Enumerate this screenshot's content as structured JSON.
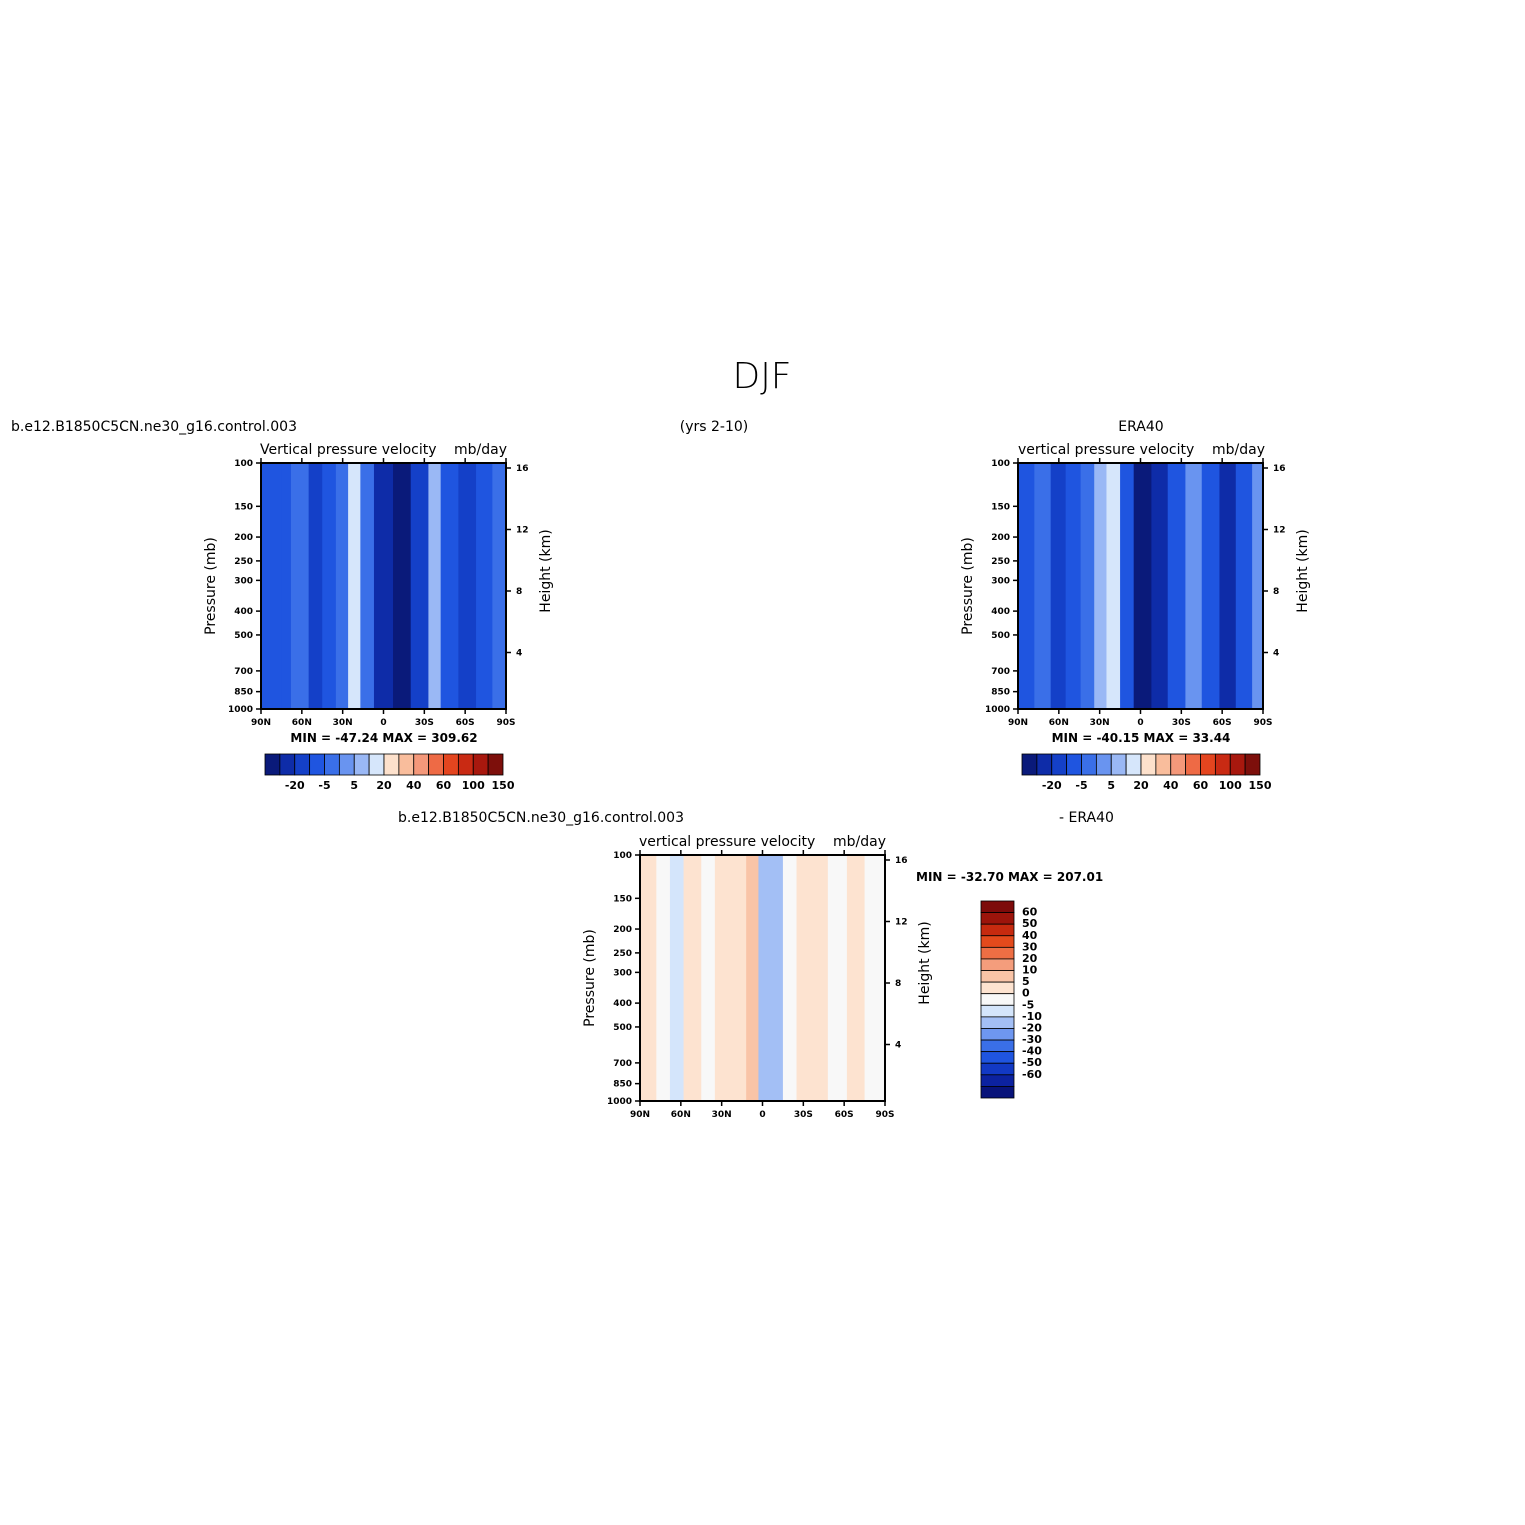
{
  "figure": {
    "main_title": "DJF",
    "center_subtitle": "(yrs 2-10)"
  },
  "colors": {
    "model_scale": [
      "#0a1a7a",
      "#0e2ca8",
      "#1440c8",
      "#1f55e0",
      "#3a6fe8",
      "#6994f0",
      "#9ab8f5",
      "#d6e6fb",
      "#fde1cc",
      "#f9bd9c",
      "#f4987a",
      "#ee6a45",
      "#e4451f",
      "#c92a13",
      "#a8180e",
      "#7d0f0b"
    ],
    "diff_scale": [
      "#08137a",
      "#0c22a0",
      "#1239c4",
      "#1f55e0",
      "#3a6fe8",
      "#6e97f0",
      "#a3bff5",
      "#d4e5fb",
      "#f8f8f8",
      "#fde3d0",
      "#f9c4a7",
      "#f49d7c",
      "#ee6e44",
      "#e34a1c",
      "#c62a0f",
      "#9c140b",
      "#7d0b0a"
    ]
  },
  "chart_data": [
    {
      "type": "heatmap",
      "panel": "model",
      "title_left": "b.e12.B1850C5CN.ne30_g16.control.003",
      "title_center": "Vertical pressure velocity",
      "title_right": "mb/day",
      "xlabel": "",
      "ylabel": "Pressure (mb)",
      "ylabel_right": "Height (km)",
      "x_ticks": [
        "90N",
        "60N",
        "30N",
        "0",
        "30S",
        "60S",
        "90S"
      ],
      "y_ticks": [
        100,
        150,
        200,
        250,
        300,
        400,
        500,
        700,
        850,
        1000
      ],
      "y_right_ticks": [
        16,
        12,
        8,
        4
      ],
      "ylim": [
        1000,
        100
      ],
      "stats": "MIN = -47.24   MAX = 309.62",
      "colorbar_labels": [
        "-20",
        "-5",
        "5",
        "20",
        "40",
        "60",
        "100",
        "150"
      ],
      "colorbar_orientation": "horizontal",
      "colorbar_colors": [
        "#0a1a7a",
        "#0e2ca8",
        "#1440c8",
        "#1f55e0",
        "#3a6fe8",
        "#6994f0",
        "#9ab8f5",
        "#d6e6fb",
        "#fde1cc",
        "#f9bd9c",
        "#f4987a",
        "#ee6a45",
        "#e4451f",
        "#c92a13",
        "#a8180e",
        "#7d0f0b"
      ],
      "field_bands": [
        {
          "lat": 90,
          "level": 3
        },
        {
          "lat": 75,
          "level": 3
        },
        {
          "lat": 68,
          "level": 4
        },
        {
          "lat": 55,
          "level": 2
        },
        {
          "lat": 45,
          "level": 3
        },
        {
          "lat": 35,
          "level": 4
        },
        {
          "lat": 26,
          "level": 7
        },
        {
          "lat": 17,
          "level": 4
        },
        {
          "lat": 7,
          "level": 1
        },
        {
          "lat": -7,
          "level": 0
        },
        {
          "lat": -20,
          "level": 2
        },
        {
          "lat": -33,
          "level": 6
        },
        {
          "lat": -42,
          "level": 3
        },
        {
          "lat": -55,
          "level": 2
        },
        {
          "lat": -68,
          "level": 3
        },
        {
          "lat": -80,
          "level": 4
        },
        {
          "lat": -90,
          "level": 4
        }
      ]
    },
    {
      "type": "heatmap",
      "panel": "obs",
      "title_left": "",
      "title_top": "ERA40",
      "title_center": "vertical pressure velocity",
      "title_right": "mb/day",
      "xlabel": "",
      "ylabel": "Pressure (mb)",
      "ylabel_right": "Height (km)",
      "x_ticks": [
        "90N",
        "60N",
        "30N",
        "0",
        "30S",
        "60S",
        "90S"
      ],
      "y_ticks": [
        100,
        150,
        200,
        250,
        300,
        400,
        500,
        700,
        850,
        1000
      ],
      "y_right_ticks": [
        16,
        12,
        8,
        4
      ],
      "ylim": [
        1000,
        100
      ],
      "stats": "MIN = -40.15   MAX =  33.44",
      "colorbar_labels": [
        "-20",
        "-5",
        "5",
        "20",
        "40",
        "60",
        "100",
        "150"
      ],
      "colorbar_orientation": "horizontal",
      "colorbar_colors": [
        "#0a1a7a",
        "#0e2ca8",
        "#1440c8",
        "#1f55e0",
        "#3a6fe8",
        "#6994f0",
        "#9ab8f5",
        "#d6e6fb",
        "#fde1cc",
        "#f9bd9c",
        "#f4987a",
        "#ee6a45",
        "#e4451f",
        "#c92a13",
        "#a8180e",
        "#7d0f0b"
      ],
      "field_bands": [
        {
          "lat": 90,
          "level": 3
        },
        {
          "lat": 78,
          "level": 4
        },
        {
          "lat": 66,
          "level": 2
        },
        {
          "lat": 55,
          "level": 3
        },
        {
          "lat": 44,
          "level": 4
        },
        {
          "lat": 34,
          "level": 6
        },
        {
          "lat": 25,
          "level": 7
        },
        {
          "lat": 15,
          "level": 3
        },
        {
          "lat": 5,
          "level": 0
        },
        {
          "lat": -8,
          "level": 1
        },
        {
          "lat": -20,
          "level": 3
        },
        {
          "lat": -33,
          "level": 5
        },
        {
          "lat": -45,
          "level": 3
        },
        {
          "lat": -58,
          "level": 1
        },
        {
          "lat": -70,
          "level": 3
        },
        {
          "lat": -82,
          "level": 5
        },
        {
          "lat": -90,
          "level": 4
        }
      ]
    },
    {
      "type": "heatmap",
      "panel": "difference",
      "title_left": "b.e12.B1850C5CN.ne30_g16.control.003",
      "title_right_line": "- ERA40",
      "title_center": "vertical pressure velocity",
      "title_right": "mb/day",
      "xlabel": "",
      "ylabel": "Pressure (mb)",
      "ylabel_right": "Height (km)",
      "x_ticks": [
        "90N",
        "60N",
        "30N",
        "0",
        "30S",
        "60S",
        "90S"
      ],
      "y_ticks": [
        100,
        150,
        200,
        250,
        300,
        400,
        500,
        700,
        850,
        1000
      ],
      "y_right_ticks": [
        16,
        12,
        8,
        4
      ],
      "ylim": [
        1000,
        100
      ],
      "stats": "MIN = -32.70   MAX = 207.01",
      "colorbar_labels": [
        "60",
        "50",
        "40",
        "30",
        "20",
        "10",
        "5",
        "0",
        "-5",
        "-10",
        "-20",
        "-30",
        "-40",
        "-50",
        "-60"
      ],
      "colorbar_orientation": "vertical",
      "colorbar_colors": [
        "#7d0b0a",
        "#9c140b",
        "#c62a0f",
        "#e34a1c",
        "#ee6e44",
        "#f49d7c",
        "#f9c4a7",
        "#fde3d0",
        "#f8f8f8",
        "#d4e5fb",
        "#a3bff5",
        "#6e97f0",
        "#3a6fe8",
        "#1f55e0",
        "#1239c4",
        "#0c22a0",
        "#08137a"
      ],
      "field_bands": [
        {
          "lat": 90,
          "level": 7
        },
        {
          "lat": 78,
          "level": 8
        },
        {
          "lat": 68,
          "level": 9
        },
        {
          "lat": 58,
          "level": 7
        },
        {
          "lat": 45,
          "level": 8
        },
        {
          "lat": 35,
          "level": 7
        },
        {
          "lat": 22,
          "level": 7
        },
        {
          "lat": 12,
          "level": 6
        },
        {
          "lat": 3,
          "level": 10
        },
        {
          "lat": -5,
          "level": 10
        },
        {
          "lat": -15,
          "level": 8
        },
        {
          "lat": -25,
          "level": 7
        },
        {
          "lat": -38,
          "level": 7
        },
        {
          "lat": -48,
          "level": 8
        },
        {
          "lat": -62,
          "level": 7
        },
        {
          "lat": -75,
          "level": 8
        },
        {
          "lat": -90,
          "level": 7
        }
      ]
    }
  ]
}
